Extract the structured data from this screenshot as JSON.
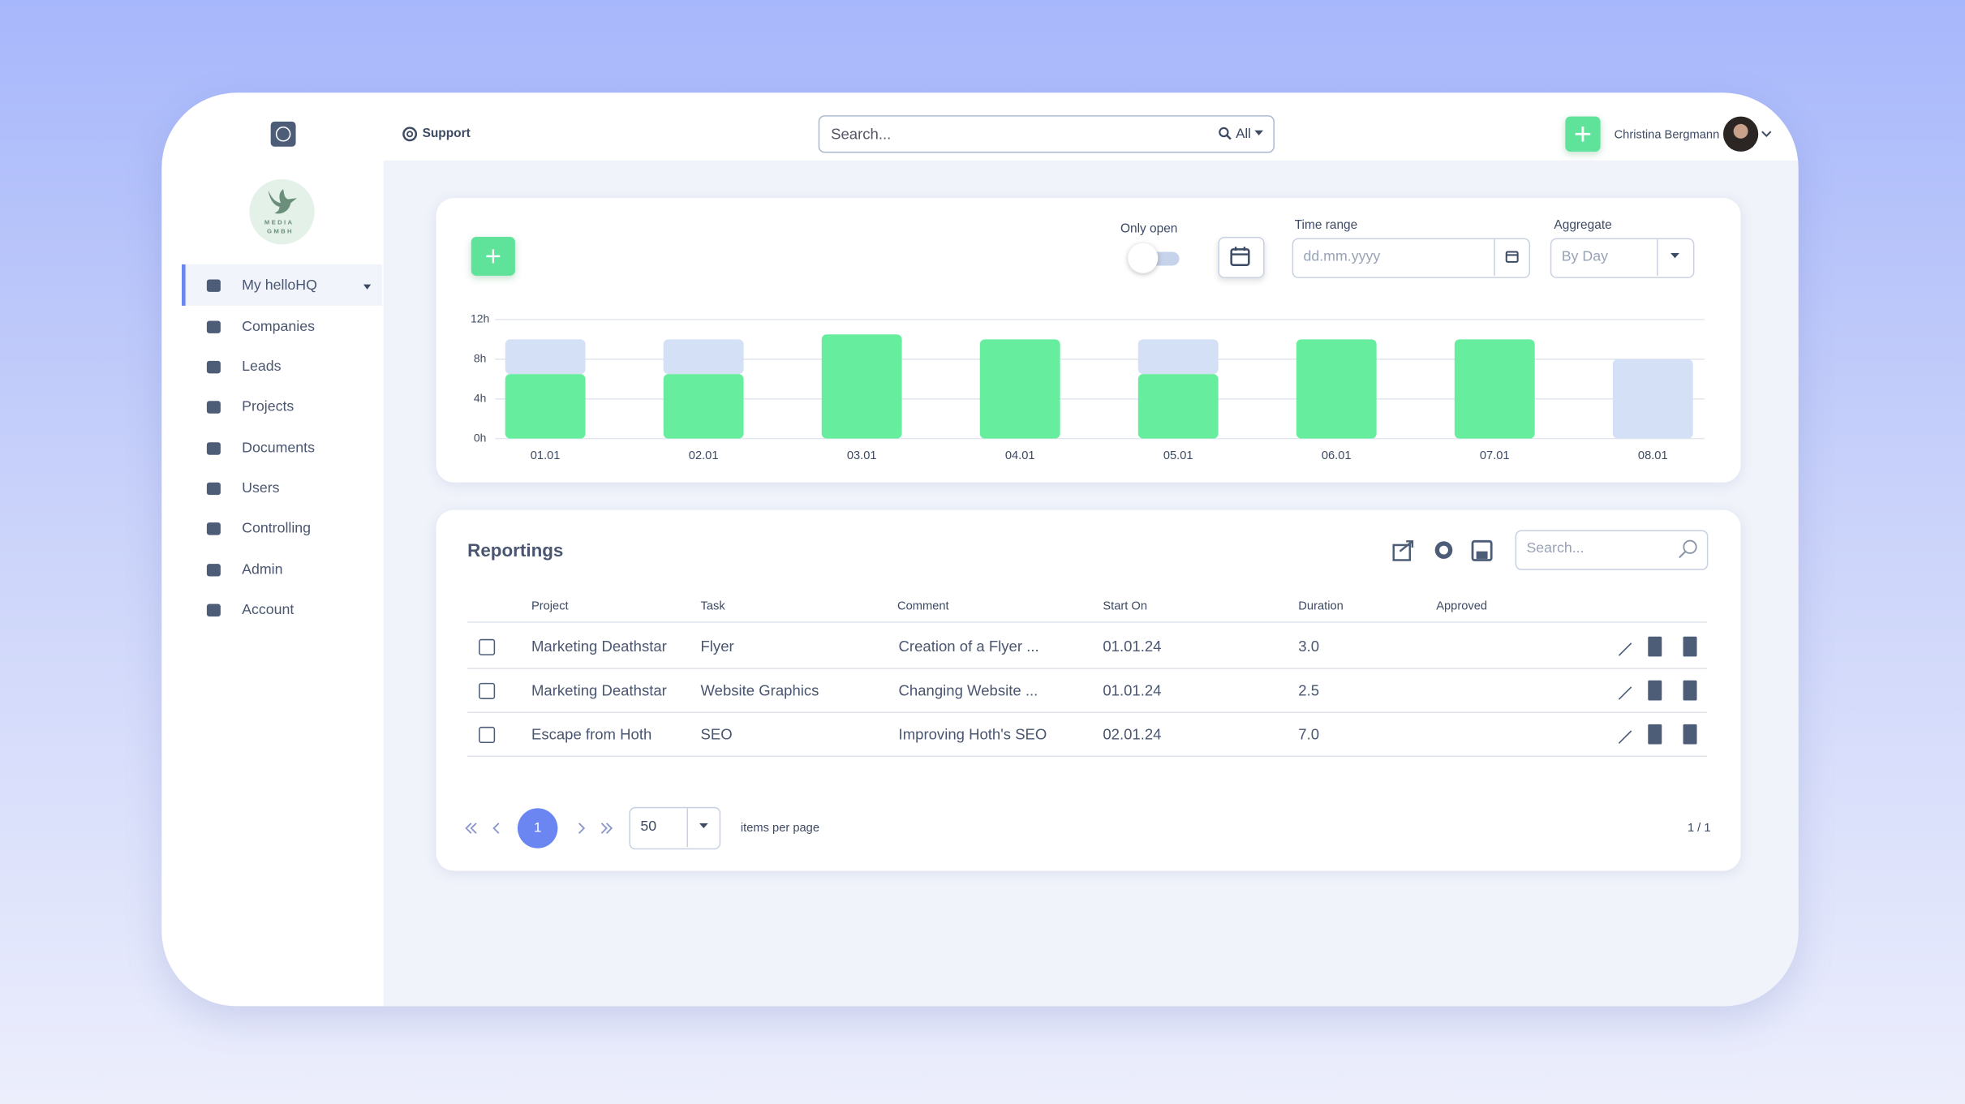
{
  "header": {
    "support": "Support",
    "search_placeholder": "Search...",
    "search_scope": "All",
    "user_name": "Christina Bergmann"
  },
  "sidebar": {
    "company_logo": [
      "MEDIA",
      "GMBH"
    ],
    "nav": [
      "My helloHQ",
      "Companies",
      "Leads",
      "Projects",
      "Documents",
      "Users",
      "Controlling",
      "Admin",
      "Account"
    ]
  },
  "filters": {
    "only_open": "Only open",
    "time_range_label": "Time range",
    "time_range_placeholder": "dd.mm.yyyy",
    "aggregate_label": "Aggregate",
    "aggregate_value": "By Day"
  },
  "chart_data": {
    "type": "bar",
    "stacked": true,
    "categories": [
      "01.01",
      "02.01",
      "03.01",
      "04.01",
      "05.01",
      "06.01",
      "07.01",
      "08.01"
    ],
    "series": [
      {
        "color": "#66ee9e",
        "values": [
          6.5,
          6.5,
          10.5,
          10,
          6.5,
          10,
          10,
          0
        ]
      },
      {
        "color": "#d3e0f5",
        "values": [
          3.5,
          3.5,
          0,
          0,
          3.5,
          0,
          0,
          8
        ]
      }
    ],
    "ylim": [
      0,
      12
    ],
    "yticks": [
      {
        "value": 0,
        "label": "0h"
      },
      {
        "value": 4,
        "label": "4h"
      },
      {
        "value": 8,
        "label": "8h"
      },
      {
        "value": 12,
        "label": "12h"
      }
    ],
    "grid": true
  },
  "reportings": {
    "title": "Reportings",
    "search_placeholder": "Search...",
    "columns": [
      "Project",
      "Task",
      "Comment",
      "Start On",
      "Duration",
      "Approved"
    ],
    "rows": [
      [
        "Marketing Deathstar",
        "Flyer",
        "Creation of a Flyer ...",
        "01.01.24",
        "3.0"
      ],
      [
        "Marketing Deathstar",
        "Website Graphics",
        "Changing Website ...",
        "01.01.24",
        "2.5"
      ],
      [
        "Escape from Hoth",
        "SEO",
        "Improving Hoth's SEO",
        "02.01.24",
        "7.0"
      ]
    ],
    "pagination": {
      "page": "1",
      "page_size": "50",
      "items_per_page": "items per page",
      "page_count": "1 / 1"
    }
  }
}
